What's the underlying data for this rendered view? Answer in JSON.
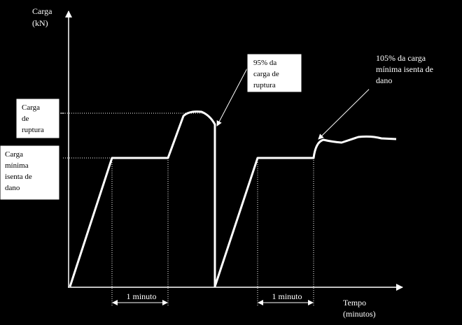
{
  "axes": {
    "y_label": [
      "Carga",
      "(kN)"
    ],
    "x_label": [
      "Tempo",
      "(minutos)"
    ]
  },
  "boxes": [
    {
      "lines": [
        "Carga",
        "de",
        "ruptura"
      ]
    },
    {
      "lines": [
        "Carga",
        "mínima",
        "isenta de",
        "dano"
      ]
    },
    {
      "lines": [
        "95% da",
        "carga de",
        "ruptura"
      ]
    },
    {
      "lines": [
        "105% da carga",
        "mínima isenta de",
        "dano"
      ]
    }
  ],
  "intervals": [
    "1 minuto",
    "1 minuto"
  ]
}
